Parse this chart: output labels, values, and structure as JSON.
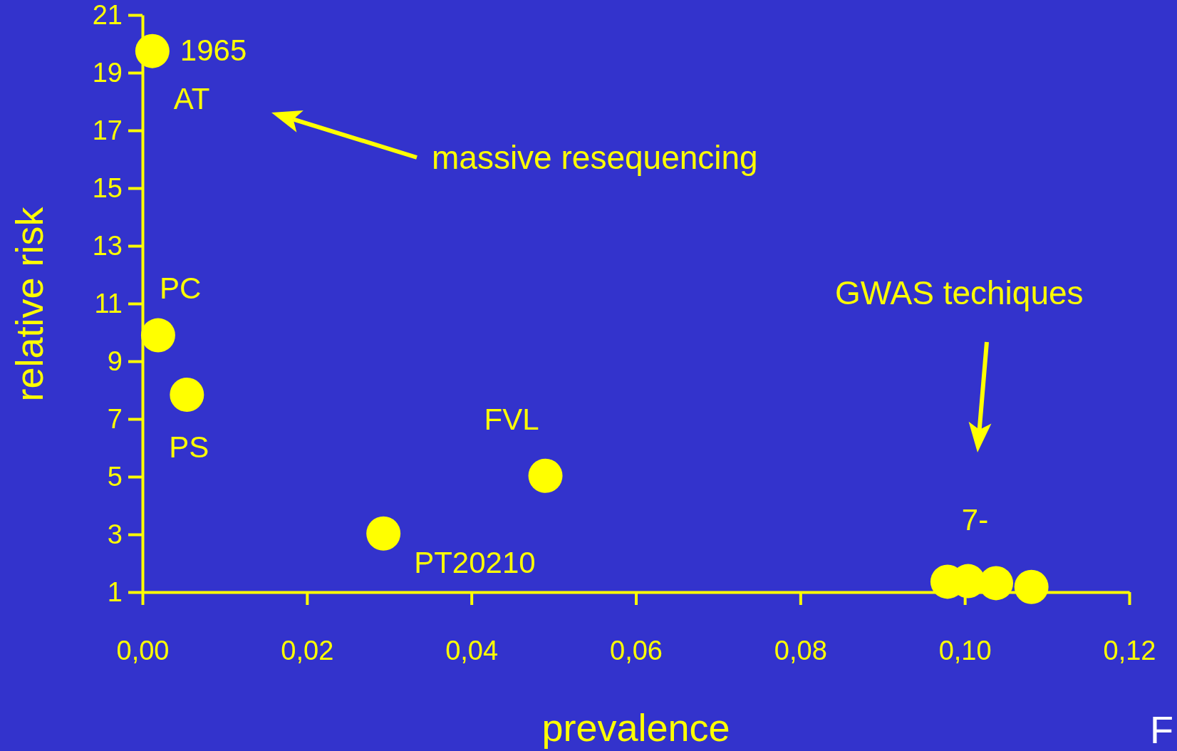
{
  "chart_data": {
    "type": "scatter",
    "xlabel": "prevalence",
    "ylabel": "relative risk",
    "x": [
      0.0012,
      0.0019,
      0.0054,
      0.0293,
      0.049,
      0.0979,
      0.1004,
      0.1038,
      0.1081
    ],
    "series": [
      {
        "color": "#ffff00",
        "values": [
          19.75,
          9.9,
          7.84,
          3.03,
          5.03,
          1.36,
          1.38,
          1.31,
          1.18
        ]
      }
    ],
    "xlim": [
      0,
      0.12
    ],
    "ylim": [
      1,
      21
    ],
    "xticks": [
      {
        "value": 0,
        "label": "0,00"
      },
      {
        "value": 0.02,
        "label": "0,02"
      },
      {
        "value": 0.04,
        "label": "0,04"
      },
      {
        "value": 0.06,
        "label": "0,06"
      },
      {
        "value": 0.08,
        "label": "0,08"
      },
      {
        "value": 0.1,
        "label": "0,10"
      },
      {
        "value": 0.12,
        "label": "0,12"
      }
    ],
    "yticks": [
      1,
      3,
      5,
      7,
      9,
      11,
      13,
      15,
      17,
      19,
      21
    ],
    "grid": false,
    "annotations": [
      {
        "text": "1965",
        "x": 0.0012,
        "y": 19.75
      },
      {
        "text": "AT",
        "x": 0.0012,
        "y": 19.75
      },
      {
        "text": "PC",
        "x": 0.0019,
        "y": 9.9
      },
      {
        "text": "PS",
        "x": 0.0054,
        "y": 7.84
      },
      {
        "text": "FVL",
        "x": 0.049,
        "y": 5.03
      },
      {
        "text": "PT20210",
        "x": 0.0293,
        "y": 3.03
      },
      {
        "text": "7-",
        "x": 0.1004,
        "y": 1.38
      },
      "massive resequencing",
      "GWAS techiques",
      "F"
    ]
  }
}
